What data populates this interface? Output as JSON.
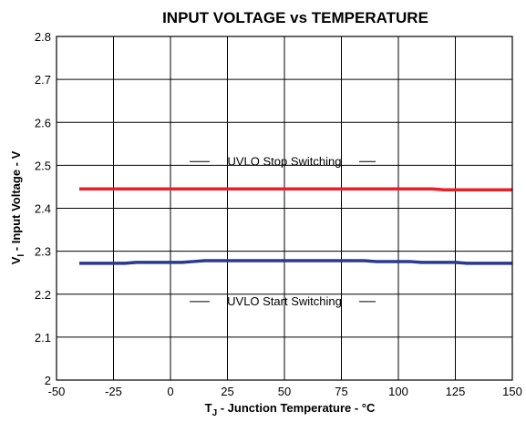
{
  "chart_data": {
    "type": "line",
    "title": "INPUT VOLTAGE vs TEMPERATURE",
    "xlabel": {
      "main": "T",
      "sub": "J",
      "rest": " - Junction Temperature - °C"
    },
    "ylabel": {
      "main": "V",
      "sub": "I",
      "rest": " - Input Voltage - V"
    },
    "xlim": [
      -50,
      150
    ],
    "ylim": [
      2.0,
      2.8
    ],
    "xticks": [
      -50,
      -25,
      0,
      25,
      50,
      75,
      100,
      125,
      150
    ],
    "yticks": [
      2.0,
      2.1,
      2.2,
      2.3,
      2.4,
      2.5,
      2.6,
      2.7,
      2.8
    ],
    "xtick_labels": [
      "-50",
      "-25",
      "0",
      "25",
      "50",
      "75",
      "100",
      "125",
      "150"
    ],
    "ytick_labels": [
      "2",
      "2.1",
      "2.2",
      "2.3",
      "2.4",
      "2.5",
      "2.6",
      "2.7",
      "2.8"
    ],
    "grid": true,
    "series": [
      {
        "name": "UVLO Stop Switching",
        "color": "#e8202a",
        "x": [
          -40,
          0,
          50,
          100,
          115,
          120,
          150
        ],
        "y": [
          2.445,
          2.445,
          2.445,
          2.445,
          2.445,
          2.443,
          2.443
        ]
      },
      {
        "name": "UVLO Start Switching",
        "color": "#2b3990",
        "x": [
          -40,
          -20,
          -15,
          5,
          10,
          15,
          50,
          85,
          90,
          105,
          110,
          125,
          130,
          150
        ],
        "y": [
          2.272,
          2.272,
          2.274,
          2.274,
          2.276,
          2.278,
          2.278,
          2.278,
          2.276,
          2.276,
          2.274,
          2.274,
          2.272,
          2.272
        ]
      }
    ],
    "annotations": [
      {
        "text": "UVLO Stop Switching",
        "series": 0,
        "position": "above"
      },
      {
        "text": "UVLO Start Switching",
        "series": 1,
        "position": "below"
      }
    ]
  }
}
